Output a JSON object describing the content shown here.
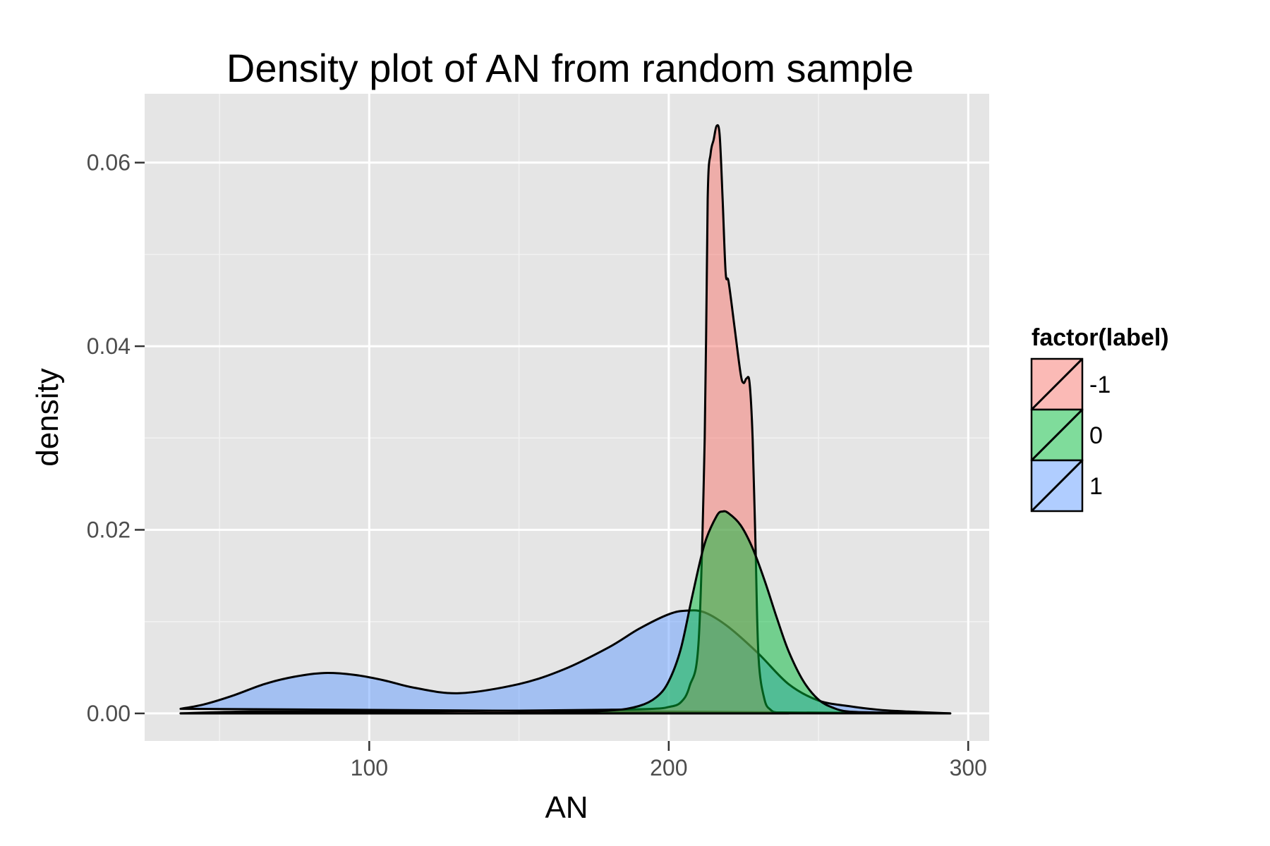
{
  "chart_data": {
    "type": "area",
    "title": "Density plot of AN from random sample",
    "xlabel": "AN",
    "ylabel": "density",
    "xlim": [
      25,
      307
    ],
    "ylim": [
      -0.003,
      0.0675
    ],
    "x_ticks": [
      {
        "value": 100,
        "label": "100"
      },
      {
        "value": 200,
        "label": "200"
      },
      {
        "value": 300,
        "label": "300"
      }
    ],
    "y_ticks": [
      {
        "value": 0,
        "label": "0.00"
      },
      {
        "value": 0.02,
        "label": "0.02"
      },
      {
        "value": 0.04,
        "label": "0.04"
      },
      {
        "value": 0.06,
        "label": "0.06"
      }
    ],
    "grid": true,
    "legend": {
      "title": "factor(label)",
      "position": "right"
    },
    "series": [
      {
        "name": "1",
        "color": "#619CFF",
        "x": [
          37,
          45,
          55,
          65,
          75,
          85,
          95,
          105,
          115,
          130,
          150,
          165,
          180,
          190,
          200,
          206,
          212,
          220,
          230,
          240,
          250,
          260,
          270,
          280,
          294
        ],
        "y": [
          0.0005,
          0.001,
          0.002,
          0.0032,
          0.004,
          0.0044,
          0.0042,
          0.0036,
          0.0028,
          0.0022,
          0.0032,
          0.0048,
          0.0072,
          0.0092,
          0.0108,
          0.0112,
          0.011,
          0.0094,
          0.0065,
          0.0032,
          0.0014,
          0.0008,
          0.0004,
          0.0002,
          0.0
        ]
      },
      {
        "name": "-1",
        "color": "#F8766D",
        "x": [
          37,
          60,
          100,
          150,
          180,
          195,
          200,
          204,
          207,
          210,
          212,
          213,
          214,
          215,
          216,
          217,
          218,
          219,
          220,
          222,
          224,
          225,
          226,
          227,
          228,
          229,
          230,
          232,
          234,
          236,
          240
        ],
        "y": [
          0.0,
          0.0002,
          0.0002,
          0.0003,
          0.0004,
          0.0005,
          0.0007,
          0.0012,
          0.003,
          0.008,
          0.03,
          0.056,
          0.061,
          0.0625,
          0.064,
          0.063,
          0.056,
          0.048,
          0.047,
          0.042,
          0.037,
          0.036,
          0.0365,
          0.036,
          0.03,
          0.018,
          0.006,
          0.0015,
          0.0004,
          0.0001,
          0.0
        ]
      },
      {
        "name": "0",
        "color": "#00BA38",
        "x": [
          37,
          80,
          130,
          160,
          180,
          190,
          196,
          200,
          204,
          208,
          212,
          216,
          218,
          220,
          224,
          228,
          232,
          236,
          240,
          245,
          250,
          255,
          260,
          270,
          294
        ],
        "y": [
          0.0,
          0.0,
          0.0,
          0.0001,
          0.0003,
          0.0008,
          0.0018,
          0.0035,
          0.007,
          0.013,
          0.0185,
          0.0215,
          0.022,
          0.0218,
          0.0205,
          0.018,
          0.0145,
          0.0105,
          0.0068,
          0.0035,
          0.0015,
          0.0006,
          0.0002,
          0.0001,
          0.0
        ]
      }
    ]
  }
}
